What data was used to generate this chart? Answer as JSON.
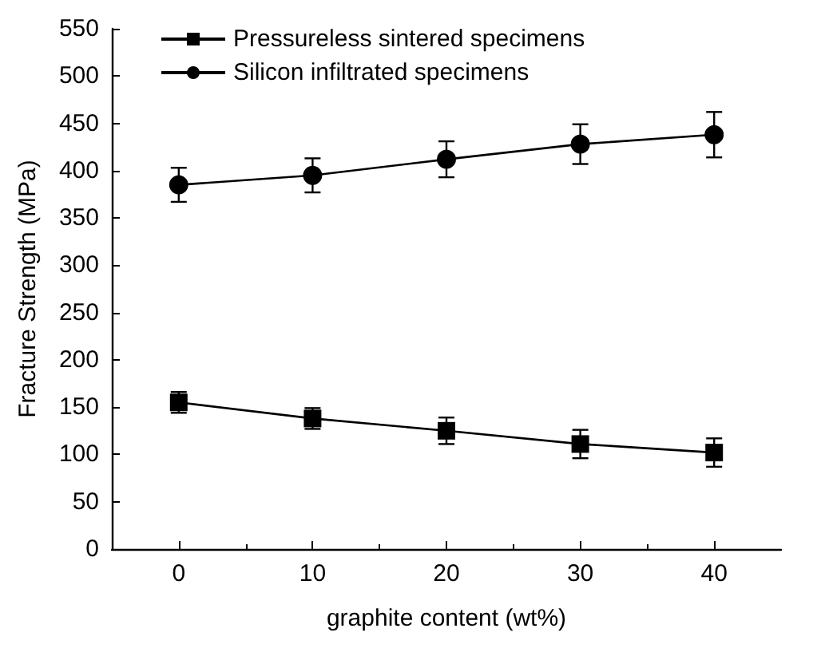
{
  "chart_data": {
    "type": "line",
    "xlabel": "graphite content (wt%)",
    "ylabel": "Fracture Strength (MPa)",
    "x": [
      0,
      10,
      20,
      30,
      40
    ],
    "xlim": [
      -5,
      45
    ],
    "xticks": [
      0,
      10,
      20,
      30,
      40
    ],
    "ylim": [
      0,
      550
    ],
    "yticks": [
      0,
      50,
      100,
      150,
      200,
      250,
      300,
      350,
      400,
      450,
      500,
      550
    ],
    "legend": "top left",
    "grid": false,
    "series": [
      {
        "name": "Pressureless sintered specimens",
        "color": "#000000",
        "marker": "square",
        "values": [
          155,
          138,
          125,
          111,
          102
        ],
        "errors": [
          11,
          11,
          14,
          15,
          15
        ]
      },
      {
        "name": "Silicon infiltrated specimens",
        "color": "#000000",
        "marker": "circle",
        "values": [
          385,
          395,
          412,
          428,
          438
        ],
        "errors": [
          18,
          18,
          19,
          21,
          24
        ]
      }
    ]
  }
}
